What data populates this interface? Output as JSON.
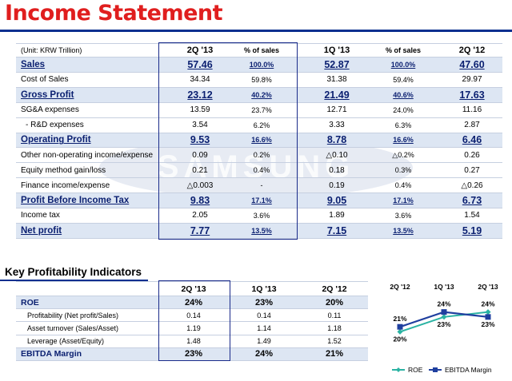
{
  "title": "Income Statement",
  "unit": "(Unit: KRW Trillion)",
  "columns": [
    "2Q '13",
    "% of sales",
    "1Q '13",
    "% of sales",
    "2Q '12"
  ],
  "rows": [
    {
      "label": "Sales",
      "bold": true,
      "v": [
        "57.46",
        "100.0%",
        "52.87",
        "100.0%",
        "47.60"
      ]
    },
    {
      "label": "Cost of Sales",
      "bold": false,
      "v": [
        "34.34",
        "59.8%",
        "31.38",
        "59.4%",
        "29.97"
      ]
    },
    {
      "label": "Gross Profit",
      "bold": true,
      "v": [
        "23.12",
        "40.2%",
        "21.49",
        "40.6%",
        "17.63"
      ]
    },
    {
      "label": "SG&A expenses",
      "bold": false,
      "v": [
        "13.59",
        "23.7%",
        "12.71",
        "24.0%",
        "11.16"
      ]
    },
    {
      "label": "- R&D expenses",
      "bold": false,
      "indent": true,
      "v": [
        "3.54",
        "6.2%",
        "3.33",
        "6.3%",
        "2.87"
      ]
    },
    {
      "label": "Operating Profit",
      "bold": true,
      "v": [
        "9.53",
        "16.6%",
        "8.78",
        "16.6%",
        "6.46"
      ]
    },
    {
      "label": "Other non-operating income/expense",
      "bold": false,
      "v": [
        "0.09",
        "0.2%",
        "△0.10",
        "△0.2%",
        "0.26"
      ]
    },
    {
      "label": "Equity method gain/loss",
      "bold": false,
      "v": [
        "0.21",
        "0.4%",
        "0.18",
        "0.3%",
        "0.27"
      ]
    },
    {
      "label": "Finance income/expense",
      "bold": false,
      "v": [
        "△0.003",
        "-",
        "0.19",
        "0.4%",
        "△0.26"
      ]
    },
    {
      "label": "Profit Before Income Tax",
      "bold": true,
      "v": [
        "9.83",
        "17.1%",
        "9.05",
        "17.1%",
        "6.73"
      ]
    },
    {
      "label": "Income tax",
      "bold": false,
      "v": [
        "2.05",
        "3.6%",
        "1.89",
        "3.6%",
        "1.54"
      ]
    },
    {
      "label": "Net profit",
      "bold": true,
      "v": [
        "7.77",
        "13.5%",
        "7.15",
        "13.5%",
        "5.19"
      ]
    }
  ],
  "kpi": {
    "title": "Key Profitability Indicators",
    "columns": [
      "2Q '13",
      "1Q '13",
      "2Q '12"
    ],
    "rows": [
      {
        "label": "ROE",
        "bold": true,
        "v": [
          "24%",
          "23%",
          "20%"
        ]
      },
      {
        "label": "Profitability (Net profit/Sales)",
        "bold": false,
        "v": [
          "0.14",
          "0.14",
          "0.11"
        ]
      },
      {
        "label": "Asset turnover (Sales/Asset)",
        "bold": false,
        "v": [
          "1.19",
          "1.14",
          "1.18"
        ]
      },
      {
        "label": "Leverage (Asset/Equity)",
        "bold": false,
        "v": [
          "1.48",
          "1.49",
          "1.52"
        ]
      },
      {
        "label": "EBITDA Margin",
        "bold": true,
        "v": [
          "23%",
          "24%",
          "21%"
        ]
      }
    ]
  },
  "chart_data": {
    "type": "line",
    "categories": [
      "2Q '12",
      "1Q '13",
      "2Q '13"
    ],
    "series": [
      {
        "name": "ROE",
        "values": [
          20,
          23,
          24
        ],
        "labels": [
          "20%",
          "23%",
          "24%"
        ],
        "color": "#2bb3a3"
      },
      {
        "name": "EBITDA Margin",
        "values": [
          21,
          24,
          23
        ],
        "labels": [
          "21%",
          "24%",
          "23%"
        ],
        "color": "#1f3f9f"
      }
    ],
    "ylim": [
      17,
      27
    ],
    "legend": "bottom-right"
  },
  "colors": {
    "title": "#e01e1e",
    "rule": "#0a2f8f",
    "highlight": "#dde6f3",
    "accent_text": "#0a1f70"
  },
  "watermark": "SAMSUNG"
}
